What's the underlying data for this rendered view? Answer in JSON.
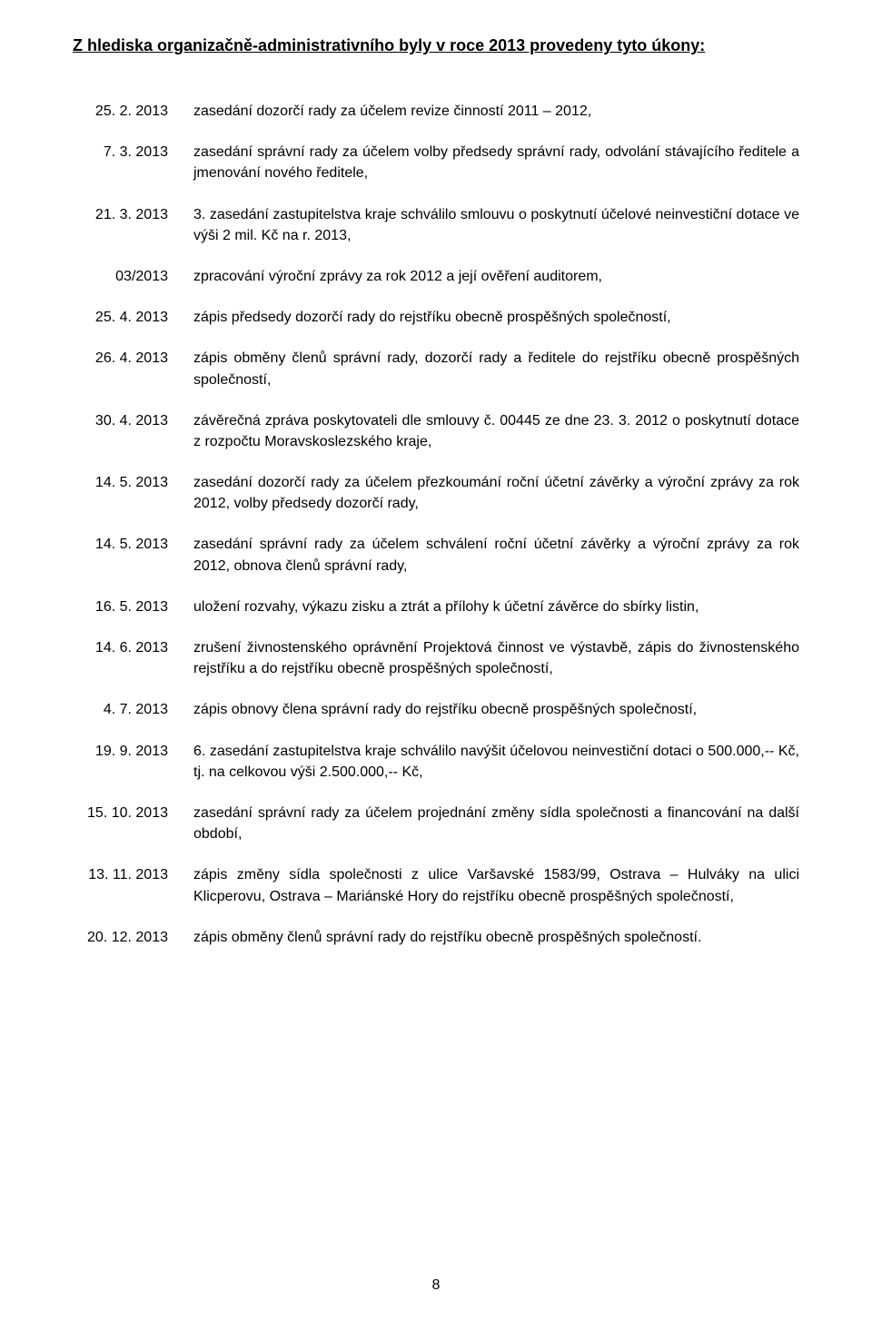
{
  "title": "Z hlediska organizačně-administrativního byly v roce 2013 provedeny tyto úkony:",
  "entries": [
    {
      "date": "25. 2. 2013",
      "desc": "zasedání dozorčí rady za účelem revize činností 2011 – 2012,"
    },
    {
      "date": "7. 3. 2013",
      "desc": "zasedání správní rady za účelem volby předsedy správní rady, odvolání stávajícího ředitele a jmenování nového ředitele,"
    },
    {
      "date": "21. 3. 2013",
      "desc": "3. zasedání zastupitelstva kraje schválilo smlouvu o poskytnutí účelové neinvestiční dotace ve výši 2 mil. Kč na r. 2013,"
    },
    {
      "date": "03/2013",
      "desc": "zpracování výroční zprávy za rok 2012 a její ověření auditorem,"
    },
    {
      "date": "25. 4. 2013",
      "desc": "zápis předsedy dozorčí rady do rejstříku obecně prospěšných společností,"
    },
    {
      "date": "26. 4. 2013",
      "desc": "zápis obměny členů správní rady, dozorčí rady a ředitele do rejstříku obecně prospěšných společností,"
    },
    {
      "date": "30. 4. 2013",
      "desc": "závěrečná zpráva poskytovateli dle smlouvy č. 00445 ze dne 23. 3. 2012 o poskytnutí dotace z rozpočtu Moravskoslezského kraje,"
    },
    {
      "date": "14. 5. 2013",
      "desc": "zasedání dozorčí rady za účelem přezkoumání roční účetní závěrky a výroční zprávy za rok 2012, volby předsedy dozorčí rady,"
    },
    {
      "date": "14. 5. 2013",
      "desc": "zasedání správní rady za účelem schválení roční účetní závěrky a výroční zprávy za rok 2012, obnova členů správní rady,"
    },
    {
      "date": "16. 5. 2013",
      "desc": "uložení rozvahy, výkazu zisku a ztrát a přílohy k účetní závěrce do sbírky listin,"
    },
    {
      "date": "14. 6. 2013",
      "desc": "zrušení živnostenského oprávnění Projektová činnost ve výstavbě, zápis do živnostenského rejstříku a do rejstříku obecně prospěšných společností,"
    },
    {
      "date": "4. 7. 2013",
      "desc": "zápis obnovy člena správní rady do rejstříku obecně prospěšných společností,"
    },
    {
      "date": "19. 9. 2013",
      "desc": "6. zasedání zastupitelstva kraje schválilo navýšit účelovou neinvestiční dotaci o 500.000,-- Kč, tj. na celkovou výši 2.500.000,-- Kč,"
    },
    {
      "date": "15. 10. 2013",
      "desc": "zasedání správní rady za účelem projednání změny sídla společnosti a financování na další období,"
    },
    {
      "date": "13. 11. 2013",
      "desc": "zápis změny sídla společnosti z ulice Varšavské 1583/99, Ostrava – Hulváky na ulici Klicperovu, Ostrava – Mariánské Hory do rejstříku obecně prospěšných společností,"
    },
    {
      "date": "20. 12. 2013",
      "desc": "zápis obměny členů správní rady do rejstříku obecně prospěšných společností."
    }
  ],
  "page_number": "8"
}
